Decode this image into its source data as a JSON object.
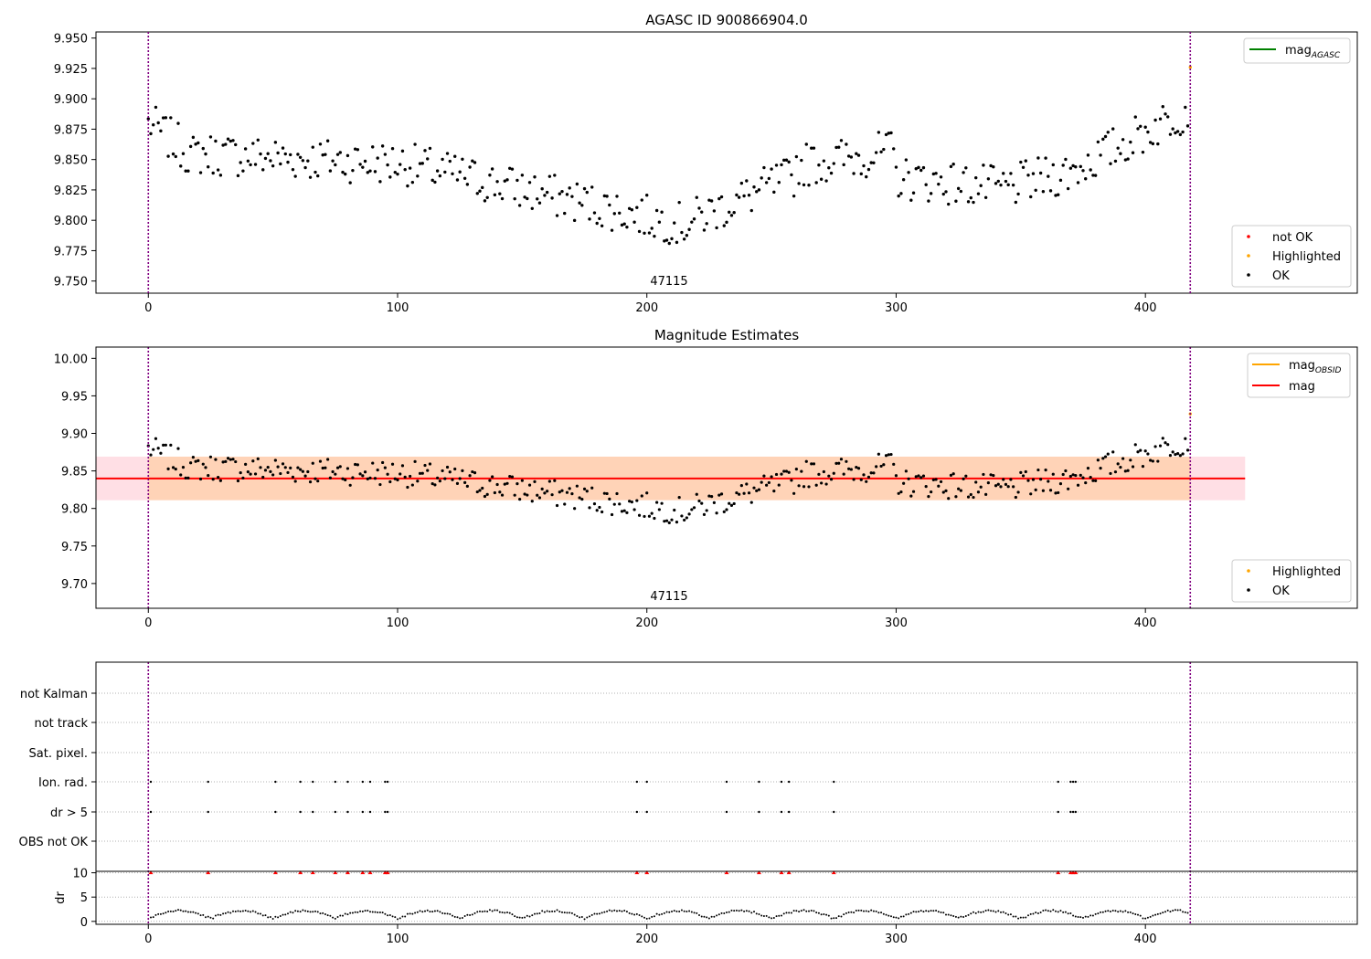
{
  "chart_data": [
    {
      "type": "scatter",
      "title": "AGASC ID 900866904.0",
      "xlim": [
        -21,
        485
      ],
      "ylim": [
        9.74,
        9.955
      ],
      "xticks": [
        0,
        100,
        200,
        300,
        400
      ],
      "yticks": [
        9.75,
        9.775,
        9.8,
        9.825,
        9.85,
        9.875,
        9.9,
        9.925,
        9.95
      ],
      "ytick_labels": [
        "9.750",
        "9.775",
        "9.800",
        "9.825",
        "9.850",
        "9.875",
        "9.900",
        "9.925",
        "9.950"
      ],
      "vlines_x": [
        0,
        418
      ],
      "annotation": "47115",
      "legend_upper": {
        "placement": "top-right",
        "entries": [
          {
            "label": "mag",
            "sub": "AGASC",
            "color": "#008000"
          }
        ]
      },
      "legend_lower": {
        "placement": "bottom-right",
        "entries": [
          {
            "label": "not OK",
            "color": "#ff0000"
          },
          {
            "label": "Highlighted",
            "color": "#ffa500"
          },
          {
            "label": "OK",
            "color": "#000000"
          }
        ]
      },
      "highlighted_point": {
        "x": 418,
        "y": 9.926
      },
      "series": [
        {
          "name": "OK",
          "color": "#000000",
          "x_start": 0,
          "x_end": 417
        }
      ]
    },
    {
      "type": "scatter",
      "title": "Magnitude Estimates",
      "xlim": [
        -21,
        485
      ],
      "ylim": [
        9.667,
        10.015
      ],
      "xticks": [
        0,
        100,
        200,
        300,
        400
      ],
      "yticks": [
        9.7,
        9.75,
        9.8,
        9.85,
        9.9,
        9.95,
        10.0
      ],
      "ytick_labels": [
        "9.70",
        "9.75",
        "9.80",
        "9.85",
        "9.90",
        "9.95",
        "10.00"
      ],
      "vlines_x": [
        0,
        418
      ],
      "annotation": "47115",
      "mag_line": {
        "value": 9.84,
        "band": [
          9.811,
          9.869
        ],
        "x_range": [
          -21,
          440
        ]
      },
      "legend_upper": {
        "placement": "top-right",
        "entries": [
          {
            "label": "mag",
            "sub": "OBSID",
            "color": "#ffa500"
          },
          {
            "label": "mag",
            "sub": "",
            "color": "#ff0000"
          }
        ]
      },
      "legend_lower": {
        "placement": "bottom-right",
        "entries": [
          {
            "label": "Highlighted",
            "color": "#ffa500"
          },
          {
            "label": "OK",
            "color": "#000000"
          }
        ]
      },
      "highlighted_point": {
        "x": 418,
        "y": 9.926
      }
    },
    {
      "type": "scatter",
      "title": "",
      "xlim": [
        -21,
        485
      ],
      "xticks": [
        0,
        100,
        200,
        300,
        400
      ],
      "vlines_x": [
        0,
        418
      ],
      "flag_labels": [
        "not Kalman",
        "not track",
        "Sat. pixel.",
        "Ion. rad.",
        "dr > 5",
        "OBS not OK"
      ],
      "flag_x": [
        1,
        24,
        51,
        61,
        66,
        75,
        80,
        86,
        89,
        95,
        96,
        196,
        200,
        232,
        245,
        254,
        257,
        275,
        365,
        370,
        371,
        372
      ],
      "dr": {
        "ylabel": "dr",
        "yticks": [
          0,
          5,
          10
        ],
        "ylim": [
          -0.6,
          10.3
        ],
        "bad_value": 10
      }
    }
  ]
}
